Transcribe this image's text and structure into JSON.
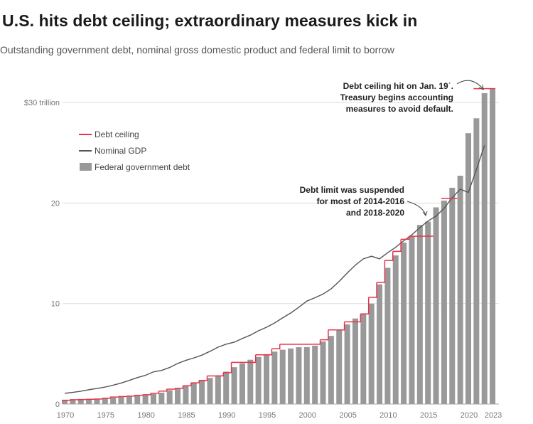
{
  "header": {
    "title": "U.S. hits debt ceiling; extraordinary measures kick in",
    "subtitle": "Outstanding government debt, nominal gross domestic product and federal limit to borrow"
  },
  "colors": {
    "bars": "#999999",
    "gdp_line": "#555555",
    "ceiling_line": "#e8334a",
    "grid": "#dddddd"
  },
  "chart_data": {
    "type": "bar",
    "x": [
      1970,
      1971,
      1972,
      1973,
      1974,
      1975,
      1976,
      1977,
      1978,
      1979,
      1980,
      1981,
      1982,
      1983,
      1984,
      1985,
      1986,
      1987,
      1988,
      1989,
      1990,
      1991,
      1992,
      1993,
      1994,
      1995,
      1996,
      1997,
      1998,
      1999,
      2000,
      2001,
      2002,
      2003,
      2004,
      2005,
      2006,
      2007,
      2008,
      2009,
      2010,
      2011,
      2012,
      2013,
      2014,
      2015,
      2016,
      2017,
      2018,
      2019,
      2020,
      2021,
      2022,
      2023
    ],
    "series": [
      {
        "name": "Federal government debt",
        "type": "bar",
        "values": [
          0.38,
          0.41,
          0.44,
          0.47,
          0.48,
          0.54,
          0.63,
          0.71,
          0.78,
          0.83,
          0.91,
          1.0,
          1.14,
          1.38,
          1.57,
          1.82,
          2.13,
          2.35,
          2.6,
          2.86,
          3.23,
          3.67,
          4.06,
          4.41,
          4.69,
          4.97,
          5.22,
          5.41,
          5.53,
          5.66,
          5.67,
          5.81,
          6.23,
          6.78,
          7.38,
          7.93,
          8.51,
          9.01,
          10.0,
          11.91,
          13.56,
          14.79,
          16.07,
          16.74,
          17.82,
          18.15,
          19.57,
          20.24,
          21.52,
          22.72,
          26.95,
          28.43,
          30.93,
          31.42
        ]
      },
      {
        "name": "Nominal GDP",
        "type": "line",
        "x": [
          1970,
          1971,
          1972,
          1973,
          1974,
          1975,
          1976,
          1977,
          1978,
          1979,
          1980,
          1981,
          1982,
          1983,
          1984,
          1985,
          1986,
          1987,
          1988,
          1989,
          1990,
          1991,
          1992,
          1993,
          1994,
          1995,
          1996,
          1997,
          1998,
          1999,
          2000,
          2001,
          2002,
          2003,
          2004,
          2005,
          2006,
          2007,
          2008,
          2009,
          2010,
          2011,
          2012,
          2013,
          2014,
          2015,
          2016,
          2017,
          2018,
          2019,
          2020,
          2021,
          2022
        ],
        "values": [
          1.07,
          1.16,
          1.28,
          1.43,
          1.55,
          1.69,
          1.88,
          2.09,
          2.36,
          2.63,
          2.86,
          3.21,
          3.35,
          3.64,
          4.04,
          4.35,
          4.59,
          4.87,
          5.25,
          5.66,
          5.96,
          6.16,
          6.52,
          6.86,
          7.29,
          7.64,
          8.07,
          8.58,
          9.06,
          9.63,
          10.25,
          10.58,
          10.94,
          11.46,
          12.21,
          13.04,
          13.82,
          14.45,
          14.71,
          14.45,
          15.05,
          15.6,
          16.25,
          16.84,
          17.55,
          18.21,
          18.7,
          19.48,
          20.53,
          21.38,
          21.06,
          23.32,
          25.74
        ]
      },
      {
        "name": "Debt ceiling",
        "type": "step",
        "x": [
          1970,
          1971,
          1972,
          1973,
          1974,
          1975,
          1976,
          1977,
          1978,
          1979,
          1980,
          1981,
          1982,
          1983,
          1984,
          1985,
          1986,
          1987,
          1988,
          1989,
          1990,
          1991,
          1992,
          1993,
          1994,
          1995,
          1996,
          1997,
          1998,
          1999,
          2000,
          2001,
          2002,
          2003,
          2004,
          2005,
          2006,
          2007,
          2008,
          2009,
          2010,
          2011,
          2012,
          2013,
          2014,
          2016,
          2017,
          2019,
          2021,
          2022,
          2023
        ],
        "values": [
          0.38,
          0.43,
          0.45,
          0.48,
          0.5,
          0.58,
          0.7,
          0.75,
          0.8,
          0.88,
          0.93,
          1.08,
          1.29,
          1.49,
          1.57,
          1.82,
          2.11,
          2.35,
          2.8,
          2.8,
          3.12,
          4.15,
          4.15,
          4.15,
          4.9,
          4.9,
          5.5,
          5.95,
          5.95,
          5.95,
          5.95,
          5.95,
          6.4,
          7.38,
          7.38,
          8.18,
          8.18,
          8.97,
          10.62,
          12.1,
          14.29,
          15.19,
          16.39,
          16.69,
          16.7,
          null,
          20.46,
          null,
          31.38,
          31.38,
          31.38
        ]
      }
    ],
    "xticks": [
      "1970",
      "1975",
      "1980",
      "1985",
      "1990",
      "1995",
      "2000",
      "2005",
      "2010",
      "2015",
      "2020",
      "2023"
    ],
    "yticks": [
      "0",
      "10",
      "20",
      "$30 trillion"
    ],
    "ylim": [
      0,
      30
    ],
    "legend": [
      "Debt ceiling",
      "Nominal GDP",
      "Federal government debt"
    ],
    "legend_position": "top-left",
    "annotations": [
      {
        "lines": [
          "Debt ceiling hit on Jan. 19˙.",
          "Treasury begins accounting",
          "measures to avoid default."
        ]
      },
      {
        "lines": [
          "Debt limit was suspended",
          "for most of 2014-2016",
          "and 2018-2020"
        ]
      }
    ],
    "grid": true
  }
}
